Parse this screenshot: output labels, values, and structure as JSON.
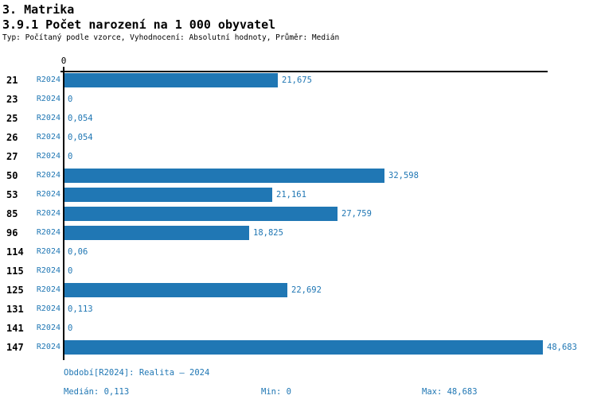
{
  "header": {
    "title": "3. Matrika",
    "subtitle": "3.9.1 Počet narození na 1 000 obyvatel",
    "meta": "Typ: Počítaný podle vzorce, Vyhodnocení: Absolutní hodnoty, Průměr: Medián"
  },
  "axis": {
    "zero_label": "0"
  },
  "chart_data": {
    "type": "bar",
    "orientation": "horizontal",
    "title": "3.9.1 Počet narození na 1 000 obyvatel",
    "categories": [
      "21",
      "23",
      "25",
      "26",
      "27",
      "50",
      "53",
      "85",
      "96",
      "114",
      "115",
      "125",
      "131",
      "141",
      "147"
    ],
    "series": [
      {
        "name": "R2024",
        "values": [
          21.675,
          0,
          0.054,
          0.054,
          0,
          32.598,
          21.161,
          27.759,
          18.825,
          0.06,
          0,
          22.692,
          0.113,
          0,
          48.683
        ]
      }
    ],
    "value_labels": [
      "21,675",
      "0",
      "0,054",
      "0,054",
      "0",
      "32,598",
      "21,161",
      "27,759",
      "18,825",
      "0,06",
      "0",
      "22,692",
      "0,113",
      "0",
      "48,683"
    ],
    "xlim": [
      0,
      48.683
    ],
    "xlabel": "",
    "ylabel": "",
    "grid": false,
    "legend_position": "none",
    "bar_color": "#2077b4",
    "text_color": "#2077b4"
  },
  "footer": {
    "period": "Období[R2024]: Realita – 2024",
    "median": "Medián: 0,113",
    "min": "Min: 0",
    "max": "Max: 48,683"
  }
}
